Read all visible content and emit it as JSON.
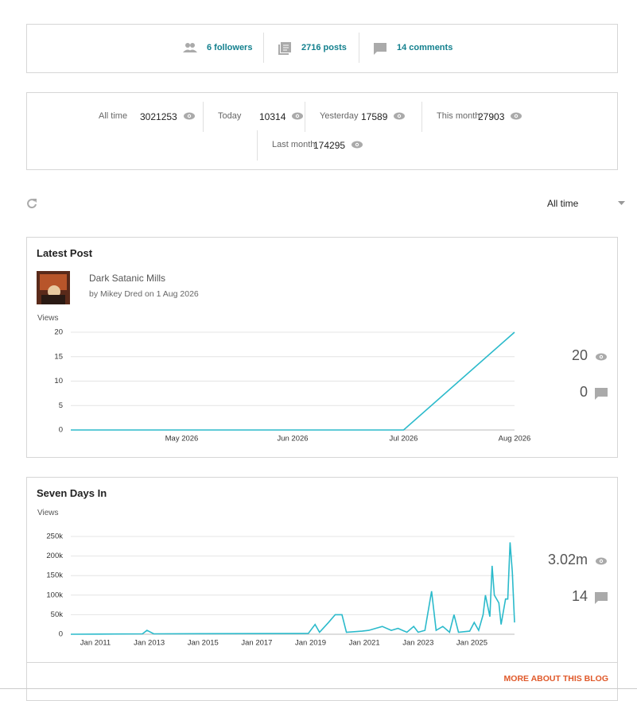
{
  "stats_bar": {
    "followers": "6 followers",
    "posts": "2716 posts",
    "comments": "14 comments"
  },
  "views": {
    "items": [
      {
        "label": "All time",
        "value": 3021253
      },
      {
        "label": "Today",
        "value": 10314
      },
      {
        "label": "Yesterday",
        "value": 17589
      },
      {
        "label": "This month",
        "value": 27903
      },
      {
        "label": "Last month",
        "value": 174295
      }
    ]
  },
  "period": "All time",
  "latest_post": {
    "title": "Dark Satanic Mills",
    "byline": "by Mikey Dred on 1 Aug 2026"
  },
  "sidebars": [
    {
      "views": 20,
      "comments": 0
    },
    {
      "views": "3.02m",
      "comments": 14
    }
  ],
  "footer": {
    "link": "MORE ABOUT THIS BLOG"
  },
  "chart_data": [
    {
      "type": "line",
      "title": "Latest Post",
      "y_label": "Views",
      "color": "#2bbacb",
      "x": [
        "2026-04",
        "2026-05",
        "2026-06",
        "2026-07",
        "2026-08"
      ],
      "values": [
        0,
        0,
        0,
        0,
        20
      ],
      "xlim": [
        "2026-04",
        "2026-08"
      ],
      "ylim": [
        0,
        20
      ],
      "yticks": [
        0,
        5,
        10,
        15,
        20
      ],
      "xticks": [
        {
          "value": "2026-05",
          "label": "May 2026"
        },
        {
          "value": "2026-06",
          "label": "Jun 2026"
        },
        {
          "value": "2026-07",
          "label": "Jul 2026"
        },
        {
          "value": "2026-08",
          "label": "Aug 2026"
        }
      ],
      "grid": true
    },
    {
      "type": "line",
      "title": "Seven Days In",
      "y_label": "Views",
      "color": "#2bbacb",
      "x": [
        "2010-02",
        "2012-10",
        "2012-12",
        "2013-03",
        "2018-12",
        "2019-03",
        "2019-05",
        "2019-09",
        "2019-12",
        "2020-03",
        "2020-05",
        "2020-12",
        "2021-03",
        "2021-06",
        "2021-09",
        "2022-01",
        "2022-04",
        "2022-08",
        "2022-11",
        "2023-01",
        "2023-04",
        "2023-07",
        "2023-09",
        "2023-12",
        "2024-03",
        "2024-05",
        "2024-07",
        "2024-12",
        "2025-02",
        "2025-04",
        "2025-06",
        "2025-07",
        "2025-09",
        "2025-10",
        "2025-11",
        "2026-01",
        "2026-02",
        "2026-04",
        "2026-05",
        "2026-06",
        "2026-07",
        "2026-08"
      ],
      "values": [
        0,
        1000,
        10000,
        1000,
        2000,
        25000,
        5000,
        30000,
        50000,
        50000,
        5000,
        8000,
        10000,
        15000,
        20000,
        10000,
        15000,
        5000,
        20000,
        5000,
        10000,
        110000,
        10000,
        20000,
        5000,
        50000,
        5000,
        8000,
        30000,
        10000,
        50000,
        100000,
        45000,
        175000,
        100000,
        80000,
        25000,
        90000,
        90000,
        235000,
        160000,
        30000
      ],
      "xlim": [
        "2010-02",
        "2026-08"
      ],
      "ylim": [
        0,
        250000
      ],
      "yticks": [
        0,
        {
          "value": 50000,
          "label": "50k"
        },
        {
          "value": 100000,
          "label": "100k"
        },
        {
          "value": 150000,
          "label": "150k"
        },
        {
          "value": 200000,
          "label": "200k"
        },
        {
          "value": 250000,
          "label": "250k"
        }
      ],
      "xticks": [
        {
          "value": "2011-01",
          "label": "Jan 2011"
        },
        {
          "value": "2013-01",
          "label": "Jan 2013"
        },
        {
          "value": "2015-01",
          "label": "Jan 2015"
        },
        {
          "value": "2017-01",
          "label": "Jan 2017"
        },
        {
          "value": "2019-01",
          "label": "Jan 2019"
        },
        {
          "value": "2021-01",
          "label": "Jan 2021"
        },
        {
          "value": "2023-01",
          "label": "Jan 2023"
        },
        {
          "value": "2025-01",
          "label": "Jan 2025"
        }
      ],
      "grid": true
    }
  ]
}
